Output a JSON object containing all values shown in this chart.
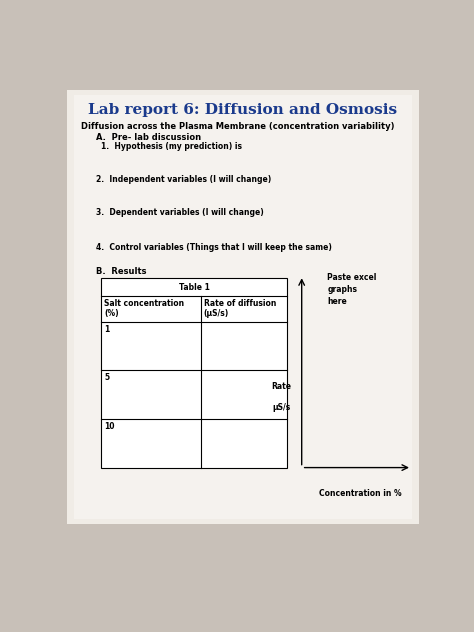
{
  "title": "Lab report 6: Diffusion and Osmosis",
  "title_color": "#1a3a8c",
  "title_fontsize": 11,
  "subtitle": "Diffusion across the Plasma Membrane (concentration variability)",
  "subtitle_fontsize": 6.0,
  "bg_outer": "#c8c0b8",
  "bg_page": "#f0ece6",
  "section_A": "A.  Pre- lab discussion",
  "item_1": "1.  Hypothesis (my prediction) is",
  "item_2": "2.  Independent variables (I will change)",
  "item_3": "3.  Dependent variables (I will change)",
  "item_4": "4.  Control variables (Things that I will keep the same)",
  "section_B": "B.  Results",
  "table_title": "Table 1",
  "col1_header_line1": "Salt concentration",
  "col1_header_line2": "(%)",
  "col2_header_line1": "Rate of diffusion",
  "col2_header_line2": "(μS/s)",
  "rows": [
    "1",
    "5",
    "10"
  ],
  "y_label_line1": "Rate",
  "y_label_line2": "μS/s",
  "x_label": "Concentration in %",
  "paste_text": "Paste excel\ngraphs\nhere",
  "label_fontsize": 5.5,
  "body_fontsize": 5.5,
  "section_fontsize": 6.0,
  "table_fontsize": 5.5
}
